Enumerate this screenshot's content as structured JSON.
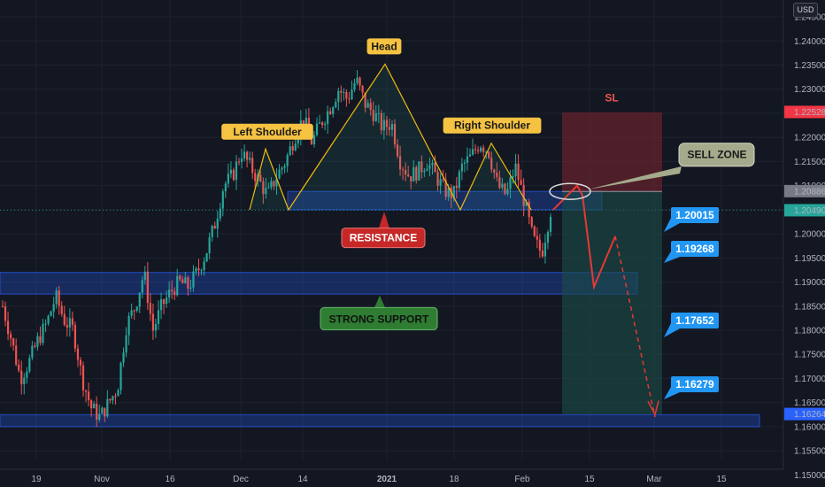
{
  "currency_button": "USD",
  "colors": {
    "background": "#131722",
    "up": "#26a69a",
    "down": "#ef5350",
    "zone": "#2962ff",
    "pattern_line": "#f0b90b",
    "label_bg": "#f5c242",
    "resistance_bg": "#c62828",
    "support_bg": "#2e7d32",
    "target_bg": "#2196f3",
    "sell_zone_bg": "#a5aa8c",
    "stop_box": "#7f2430",
    "target_box": "#1b4d48"
  },
  "chart_data": {
    "type": "candlestick",
    "instrument_currency": "USD",
    "x_ticks": [
      "19",
      "Nov",
      "16",
      "Dec",
      "14",
      "2021",
      "18",
      "Feb",
      "15",
      "Mar",
      "15"
    ],
    "y_ticks": [
      "1.24500",
      "1.24000",
      "1.23500",
      "1.23000",
      "1.22500",
      "1.22000",
      "1.21500",
      "1.21000",
      "1.20500",
      "1.20000",
      "1.19500",
      "1.19000",
      "1.18500",
      "1.18000",
      "1.17500",
      "1.17000",
      "1.16500",
      "1.16000",
      "1.15500",
      "1.15000"
    ],
    "ylim": [
      1.1475,
      1.2485
    ],
    "price_labels": [
      {
        "text": "1.22528",
        "value": 1.22528,
        "color": "#f23645"
      },
      {
        "text": "1.20886",
        "value": 1.20886,
        "color": "#787b86"
      },
      {
        "text": "1.20490",
        "value": 1.2049,
        "color": "#26a69a"
      },
      {
        "text": "1.16264",
        "value": 1.16264,
        "color": "#2962ff"
      }
    ],
    "price_path": [
      [
        1.185,
        1.178,
        1.17,
        1.1735,
        1.178,
        1.1815,
        1.187,
        1.182,
        1.18
      ],
      [
        1.182,
        1.17,
        1.164,
        1.162,
        1.165,
        1.168,
        1.181
      ],
      [
        1.181,
        1.185,
        1.192,
        1.18,
        1.185,
        1.188,
        1.19,
        1.189,
        1.192,
        1.196,
        1.202
      ],
      [
        1.202,
        1.21,
        1.212,
        1.217,
        1.214,
        1.211,
        1.208,
        1.212,
        1.215,
        1.22,
        1.224,
        1.219
      ],
      [
        1.219,
        1.223,
        1.226,
        1.23,
        1.228,
        1.232
      ],
      [
        1.232,
        1.227,
        1.225,
        1.222,
        1.223,
        1.215,
        1.212,
        1.213,
        1.215,
        1.212,
        1.209,
        1.208,
        1.214
      ],
      [
        1.214,
        1.216,
        1.219,
        1.217,
        1.21,
        1.208,
        1.214,
        1.207,
        1.199,
        1.196,
        1.2049
      ]
    ],
    "annotations": {
      "patterns": [
        {
          "text": "Left Shoulder",
          "value": 1.2175
        },
        {
          "text": "Head",
          "value": 1.2352
        },
        {
          "text": "Right Shoulder",
          "value": 1.2188
        }
      ],
      "neckline": [
        1.205,
        1.206
      ],
      "zones": [
        {
          "name": "resistance-zone",
          "from": 1.205,
          "to": 1.2088
        },
        {
          "name": "support-zone",
          "from": 1.1875,
          "to": 1.192
        },
        {
          "name": "bottom-zone",
          "from": 1.16,
          "to": 1.1625
        }
      ],
      "callouts": {
        "resistance": "RESISTANCE",
        "strong_support": "STRONG SUPPORT",
        "sell_zone": "SELL ZONE",
        "stop_loss": "SL"
      },
      "position": {
        "entry": 1.2088,
        "stop": 1.2252,
        "target": 1.1626
      },
      "forecast_path": [
        1.205,
        1.21,
        1.208,
        1.189,
        1.1995
      ],
      "forecast_dashed": [
        1.1995,
        1.162
      ],
      "targets": [
        "1.20015",
        "1.19268",
        "1.17652",
        "1.16279"
      ]
    }
  }
}
